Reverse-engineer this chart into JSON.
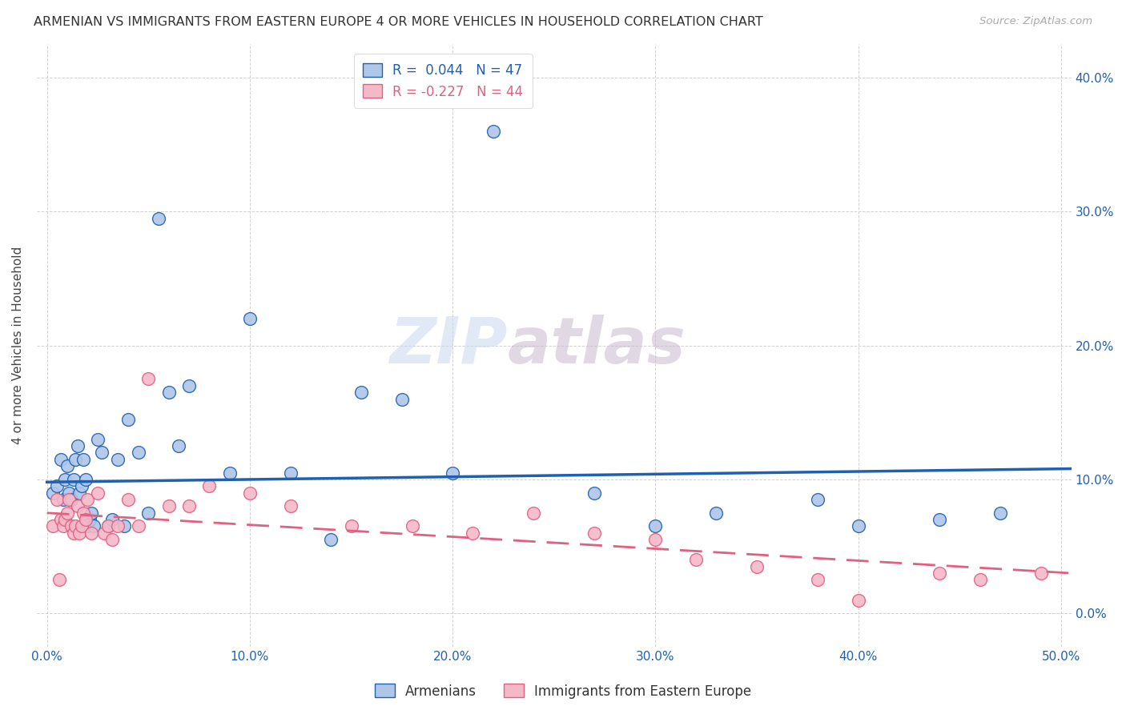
{
  "title": "ARMENIAN VS IMMIGRANTS FROM EASTERN EUROPE 4 OR MORE VEHICLES IN HOUSEHOLD CORRELATION CHART",
  "source": "Source: ZipAtlas.com",
  "ylabel": "4 or more Vehicles in Household",
  "xlabel_ticks": [
    "0.0%",
    "10.0%",
    "20.0%",
    "30.0%",
    "40.0%",
    "50.0%"
  ],
  "xlabel_vals": [
    0.0,
    0.1,
    0.2,
    0.3,
    0.4,
    0.5
  ],
  "ylabel_ticks": [
    "0.0%",
    "10.0%",
    "20.0%",
    "30.0%",
    "40.0%"
  ],
  "ylabel_vals": [
    0.0,
    0.1,
    0.2,
    0.3,
    0.4
  ],
  "xlim": [
    -0.005,
    0.505
  ],
  "ylim": [
    -0.025,
    0.425
  ],
  "r_armenian": 0.044,
  "n_armenian": 47,
  "r_eastern_europe": -0.227,
  "n_eastern_europe": 44,
  "legend_label_armenian": "Armenians",
  "legend_label_eastern_europe": "Immigrants from Eastern Europe",
  "color_armenian": "#aec6e8",
  "color_eastern_europe": "#f5b8c8",
  "line_color_armenian": "#2060b0",
  "line_color_eastern_europe": "#e06080",
  "background_color": "#ffffff",
  "watermark_zip": "ZIP",
  "watermark_atlas": "atlas",
  "scatter_armenian_x": [
    0.003,
    0.005,
    0.007,
    0.008,
    0.009,
    0.01,
    0.011,
    0.012,
    0.013,
    0.014,
    0.015,
    0.016,
    0.017,
    0.018,
    0.019,
    0.02,
    0.021,
    0.022,
    0.023,
    0.025,
    0.027,
    0.03,
    0.032,
    0.035,
    0.038,
    0.04,
    0.045,
    0.05,
    0.055,
    0.06,
    0.065,
    0.07,
    0.09,
    0.1,
    0.12,
    0.14,
    0.155,
    0.175,
    0.2,
    0.22,
    0.27,
    0.3,
    0.33,
    0.38,
    0.4,
    0.44,
    0.47
  ],
  "scatter_armenian_y": [
    0.09,
    0.095,
    0.115,
    0.085,
    0.1,
    0.11,
    0.09,
    0.085,
    0.1,
    0.115,
    0.125,
    0.09,
    0.095,
    0.115,
    0.1,
    0.065,
    0.07,
    0.075,
    0.065,
    0.13,
    0.12,
    0.065,
    0.07,
    0.115,
    0.065,
    0.145,
    0.12,
    0.075,
    0.295,
    0.165,
    0.125,
    0.17,
    0.105,
    0.22,
    0.105,
    0.055,
    0.165,
    0.16,
    0.105,
    0.36,
    0.09,
    0.065,
    0.075,
    0.085,
    0.065,
    0.07,
    0.075
  ],
  "scatter_eastern_x": [
    0.003,
    0.005,
    0.006,
    0.007,
    0.008,
    0.009,
    0.01,
    0.011,
    0.012,
    0.013,
    0.014,
    0.015,
    0.016,
    0.017,
    0.018,
    0.019,
    0.02,
    0.022,
    0.025,
    0.028,
    0.03,
    0.032,
    0.035,
    0.04,
    0.045,
    0.05,
    0.06,
    0.07,
    0.08,
    0.1,
    0.12,
    0.15,
    0.18,
    0.21,
    0.24,
    0.27,
    0.3,
    0.32,
    0.35,
    0.38,
    0.4,
    0.44,
    0.46,
    0.49
  ],
  "scatter_eastern_y": [
    0.065,
    0.085,
    0.025,
    0.07,
    0.065,
    0.07,
    0.075,
    0.085,
    0.065,
    0.06,
    0.065,
    0.08,
    0.06,
    0.065,
    0.075,
    0.07,
    0.085,
    0.06,
    0.09,
    0.06,
    0.065,
    0.055,
    0.065,
    0.085,
    0.065,
    0.175,
    0.08,
    0.08,
    0.095,
    0.09,
    0.08,
    0.065,
    0.065,
    0.06,
    0.075,
    0.06,
    0.055,
    0.04,
    0.035,
    0.025,
    0.01,
    0.03,
    0.025,
    0.03
  ],
  "line_arm_x0": 0.0,
  "line_arm_x1": 0.505,
  "line_arm_y0": 0.098,
  "line_arm_y1": 0.108,
  "line_east_x0": 0.0,
  "line_east_x1": 0.505,
  "line_east_y0": 0.075,
  "line_east_y1": 0.03
}
